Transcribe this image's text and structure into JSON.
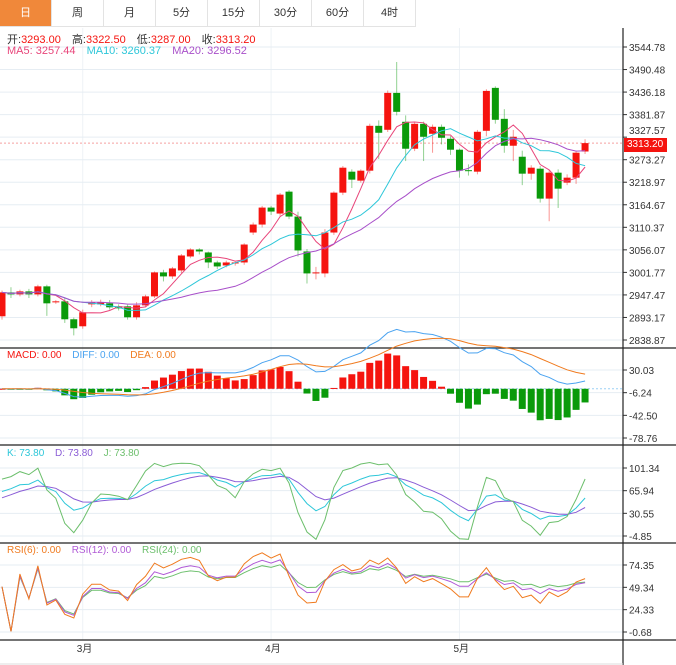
{
  "tabs": [
    {
      "label": "日",
      "active": true
    },
    {
      "label": "周"
    },
    {
      "label": "月"
    },
    {
      "label": "5分"
    },
    {
      "label": "15分"
    },
    {
      "label": "30分"
    },
    {
      "label": "60分"
    },
    {
      "label": "4时"
    }
  ],
  "ohlc_info": {
    "open_label": "开:",
    "open": "3293.00",
    "high_label": "高:",
    "high": "3322.50",
    "low_label": "低:",
    "low": "3287.00",
    "close_label": "收:",
    "close": "3313.20"
  },
  "ma_info": {
    "ma5": "MA5: 3257.44",
    "ma10": "MA10: 3260.37",
    "ma20": "MA20: 3296.52"
  },
  "macd_info": {
    "macd": "MACD: 0.00",
    "diff": "DIFF: 0.00",
    "dea": "DEA: 0.00"
  },
  "kdj_info": {
    "k": "K: 73.80",
    "d": "D: 73.80",
    "j": "J: 73.80"
  },
  "rsi_info": {
    "rsi6": "RSI(6): 0.00",
    "rsi12": "RSI(12): 0.00",
    "rsi24": "RSI(24): 0.00"
  },
  "last_price": "3313.20",
  "colors": {
    "up": "#f5140f",
    "down": "#0a9a0a",
    "ma5": "#e8457a",
    "ma10": "#2ec7d9",
    "ma20": "#a84fc9",
    "diff": "#4aa3f0",
    "dea": "#f07a1e",
    "k": "#2ec7d9",
    "d": "#8a5cd6",
    "j": "#6cbf6c",
    "rsi6": "#f07a1e",
    "rsi12": "#b05ad6",
    "rsi24": "#6cbf6c",
    "tab_active": "#f0883a"
  },
  "chart_data": {
    "type": "candlestick",
    "price_ticks": [
      "3544.78",
      "3490.48",
      "3436.18",
      "3381.87",
      "3327.57",
      "3273.27",
      "3218.97",
      "3164.67",
      "3110.37",
      "3056.07",
      "3001.77",
      "2947.47",
      "2893.17",
      "2838.87"
    ],
    "macd_ticks": [
      "30.03",
      "-6.24",
      "-42.50",
      "-78.76"
    ],
    "kdj_ticks": [
      "101.34",
      "65.94",
      "30.55",
      "-4.85"
    ],
    "rsi_ticks": [
      "74.35",
      "49.34",
      "24.33",
      "-0.68"
    ],
    "month_labels": [
      {
        "label": "3月",
        "index": 9
      },
      {
        "label": "4月",
        "index": 30
      },
      {
        "label": "5月",
        "index": 51
      }
    ],
    "candles": [
      [
        2896.0,
        2958,
        2888,
        2953.6
      ],
      [
        2953.6,
        2966,
        2940,
        2948.8
      ],
      [
        2948.8,
        2960,
        2944,
        2956.0
      ],
      [
        2956.0,
        2962,
        2940,
        2948.8
      ],
      [
        2948.8,
        2972,
        2944,
        2968.1
      ],
      [
        2968.1,
        2972,
        2897,
        2927.2
      ],
      [
        2929.6,
        2935,
        2926,
        2932.0
      ],
      [
        2932.0,
        2940,
        2880,
        2888.8
      ],
      [
        2888.8,
        2893,
        2850,
        2867.1
      ],
      [
        2871.9,
        2912,
        2866,
        2905.6
      ],
      [
        2924.8,
        2935,
        2918,
        2929.6
      ],
      [
        2924.8,
        2936,
        2920,
        2929.6
      ],
      [
        2927.2,
        2935,
        2912,
        2917.6
      ],
      [
        2920.0,
        2925,
        2910,
        2915.2
      ],
      [
        2920.0,
        2924,
        2888,
        2893.6
      ],
      [
        2893.6,
        2930,
        2888,
        2922.4
      ],
      [
        2922.4,
        2948,
        2918,
        2944.0
      ],
      [
        2944.0,
        3004,
        2940,
        3001.7
      ],
      [
        3001.7,
        3008,
        2980,
        2992.1
      ],
      [
        2992.1,
        3015,
        2986,
        3011.3
      ],
      [
        3006.5,
        3046,
        3000,
        3042.5
      ],
      [
        3040.1,
        3060,
        3036,
        3056.9
      ],
      [
        3056.9,
        3060,
        3045,
        3052.2
      ],
      [
        3049.8,
        3052,
        3012,
        3025.7
      ],
      [
        3025.7,
        3030,
        3010,
        3016.1
      ],
      [
        3018.5,
        3030,
        3014,
        3025.7
      ],
      [
        3023.3,
        3030,
        3018,
        3025.7
      ],
      [
        3025.7,
        3072,
        3020,
        3068.9
      ],
      [
        3097.8,
        3122,
        3092,
        3117.0
      ],
      [
        3117.0,
        3162,
        3110,
        3157.9
      ],
      [
        3157.9,
        3162,
        3140,
        3148.3
      ],
      [
        3143.5,
        3193,
        3138,
        3189.1
      ],
      [
        3196.3,
        3200,
        3130,
        3136.3
      ],
      [
        3136.3,
        3148,
        3040,
        3054.6
      ],
      [
        3052.2,
        3058,
        2975,
        2999.3
      ],
      [
        2999.3,
        3015,
        2985,
        3001.7
      ],
      [
        2999.3,
        3106,
        2990,
        3097.8
      ],
      [
        3097.8,
        3197,
        3092,
        3193.9
      ],
      [
        3193.9,
        3258,
        3188,
        3254.0
      ],
      [
        3244.4,
        3250,
        3205,
        3225.2
      ],
      [
        3222.8,
        3250,
        3218,
        3246.8
      ],
      [
        3246.8,
        3360,
        3240,
        3354.9
      ],
      [
        3354.9,
        3368,
        3275,
        3338.1
      ],
      [
        3345.3,
        3440,
        3340,
        3434.2
      ],
      [
        3434.2,
        3508.7,
        3380,
        3388.6
      ],
      [
        3364.6,
        3380,
        3270,
        3299.7
      ],
      [
        3299.7,
        3365,
        3294,
        3359.7
      ],
      [
        3359.7,
        3365,
        3270,
        3328.5
      ],
      [
        3335.7,
        3358,
        3290,
        3352.5
      ],
      [
        3352.5,
        3358,
        3310,
        3326.1
      ],
      [
        3323.7,
        3330,
        3285,
        3297.3
      ],
      [
        3297.3,
        3300,
        3230,
        3246.8
      ],
      [
        3248.0,
        3262,
        3235,
        3246.8
      ],
      [
        3244.4,
        3345,
        3238,
        3340.5
      ],
      [
        3342.9,
        3443,
        3330,
        3439.0
      ],
      [
        3446.3,
        3450,
        3360,
        3369.4
      ],
      [
        3371.7,
        3395,
        3290,
        3306.9
      ],
      [
        3306.9,
        3345,
        3270,
        3328.5
      ],
      [
        3280.4,
        3295,
        3212,
        3239.6
      ],
      [
        3239.6,
        3260,
        3225,
        3254.0
      ],
      [
        3251.6,
        3258,
        3170,
        3179.5
      ],
      [
        3179.5,
        3248,
        3125,
        3242.0
      ],
      [
        3242.0,
        3250,
        3157,
        3203.5
      ],
      [
        3218.0,
        3238,
        3212,
        3230.0
      ],
      [
        3230.0,
        3295,
        3215,
        3290.1
      ],
      [
        3293.0,
        3322.5,
        3287.0,
        3313.2
      ]
    ]
  }
}
